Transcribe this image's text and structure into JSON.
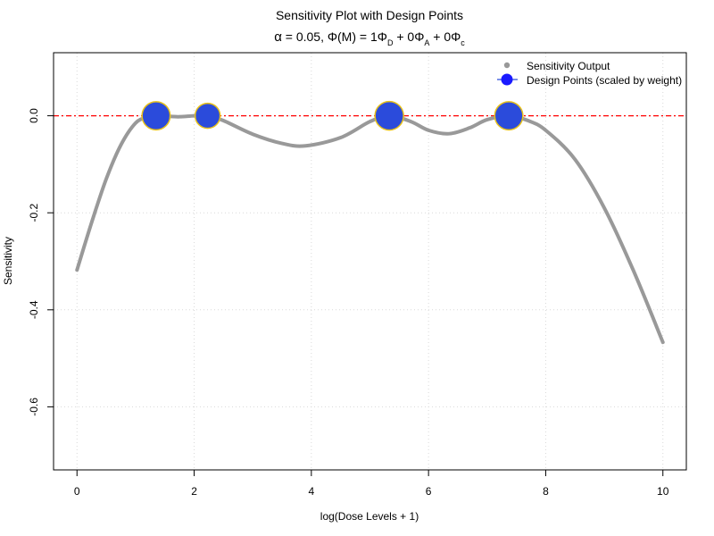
{
  "chart_data": {
    "type": "line",
    "title": "Sensitivity Plot with Design Points",
    "subtitle": {
      "alpha": "α",
      "eq1": " = 0.05, ",
      "phi": "Φ",
      "M": "(M)",
      "eq2": " = 1",
      "phiD": "Φ",
      "subD": "D",
      "plus1": " + 0",
      "phiA": "Φ",
      "subA": "A",
      "plus2": " + 0",
      "phiC": "Φ",
      "subC": "c"
    },
    "xlabel": "log(Dose Levels + 1)",
    "ylabel": "Sensitivity",
    "xlim": [
      -0.4,
      10.4
    ],
    "ylim": [
      -0.73,
      0.13
    ],
    "x_ticks": [
      0,
      2,
      4,
      6,
      8,
      10
    ],
    "x_tick_labels": [
      "0",
      "2",
      "4",
      "6",
      "8",
      "10"
    ],
    "y_ticks": [
      0.0,
      -0.2,
      -0.4,
      -0.6
    ],
    "y_tick_labels": [
      "0.0",
      "-0.2",
      "-0.4",
      "-0.6"
    ],
    "grid": true,
    "reference_line": {
      "y": 0,
      "color": "#ff0000"
    },
    "series": [
      {
        "name": "Sensitivity Output",
        "color": "#999999",
        "x": [
          0,
          0.25,
          0.5,
          0.75,
          1.0,
          1.2,
          1.35,
          1.5,
          1.75,
          2.0,
          2.23,
          2.5,
          3.0,
          3.5,
          3.9,
          4.5,
          5.0,
          5.33,
          5.7,
          6.0,
          6.35,
          6.7,
          7.0,
          7.37,
          7.7,
          8.0,
          8.5,
          9.0,
          9.5,
          10.0
        ],
        "y": [
          -0.318,
          -0.22,
          -0.13,
          -0.06,
          -0.015,
          -0.003,
          0.0,
          -0.001,
          -0.002,
          0.0,
          0.0,
          -0.01,
          -0.038,
          -0.057,
          -0.062,
          -0.045,
          -0.012,
          0.0,
          -0.012,
          -0.03,
          -0.037,
          -0.025,
          -0.008,
          0.0,
          -0.01,
          -0.03,
          -0.09,
          -0.19,
          -0.32,
          -0.467
        ]
      }
    ],
    "design_points": {
      "name": "Design Points (scaled by weight)",
      "fill": "#2b4bdb",
      "stroke": "#e8c21a",
      "x": [
        1.35,
        2.23,
        5.33,
        7.37
      ],
      "y": [
        0,
        0,
        0,
        0
      ],
      "weights": [
        0.27,
        0.2,
        0.28,
        0.27
      ]
    },
    "legend_position": "top-right"
  }
}
